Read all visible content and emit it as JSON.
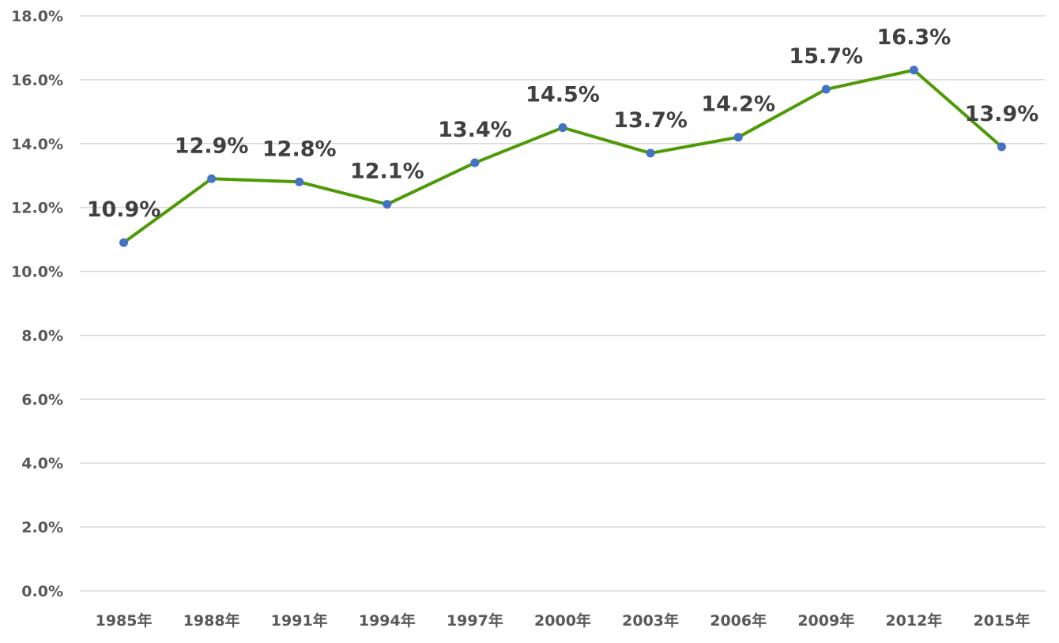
{
  "chart_data": {
    "type": "line",
    "title": "",
    "xlabel": "",
    "ylabel": "",
    "categories": [
      "1985年",
      "1988年",
      "1991年",
      "1994年",
      "1997年",
      "2000年",
      "2003年",
      "2006年",
      "2009年",
      "2012年",
      "2015年"
    ],
    "series": [
      {
        "values": [
          10.9,
          12.9,
          12.8,
          12.1,
          13.4,
          14.5,
          13.7,
          14.2,
          15.7,
          16.3,
          13.9
        ],
        "labels": [
          "10.9%",
          "12.9%",
          "12.8%",
          "12.1%",
          "13.4%",
          "14.5%",
          "13.7%",
          "14.2%",
          "15.7%",
          "16.3%",
          "13.9%"
        ],
        "line_color": "#4e9a06",
        "marker_color": "#4472c4"
      }
    ],
    "ylim": [
      0,
      18
    ],
    "yticks": [
      0,
      2,
      4,
      6,
      8,
      10,
      12,
      14,
      16,
      18
    ],
    "ytick_labels": [
      "0.0%",
      "2.0%",
      "4.0%",
      "6.0%",
      "8.0%",
      "10.0%",
      "12.0%",
      "14.0%",
      "16.0%",
      "18.0%"
    ],
    "grid": true,
    "legend": "none"
  }
}
